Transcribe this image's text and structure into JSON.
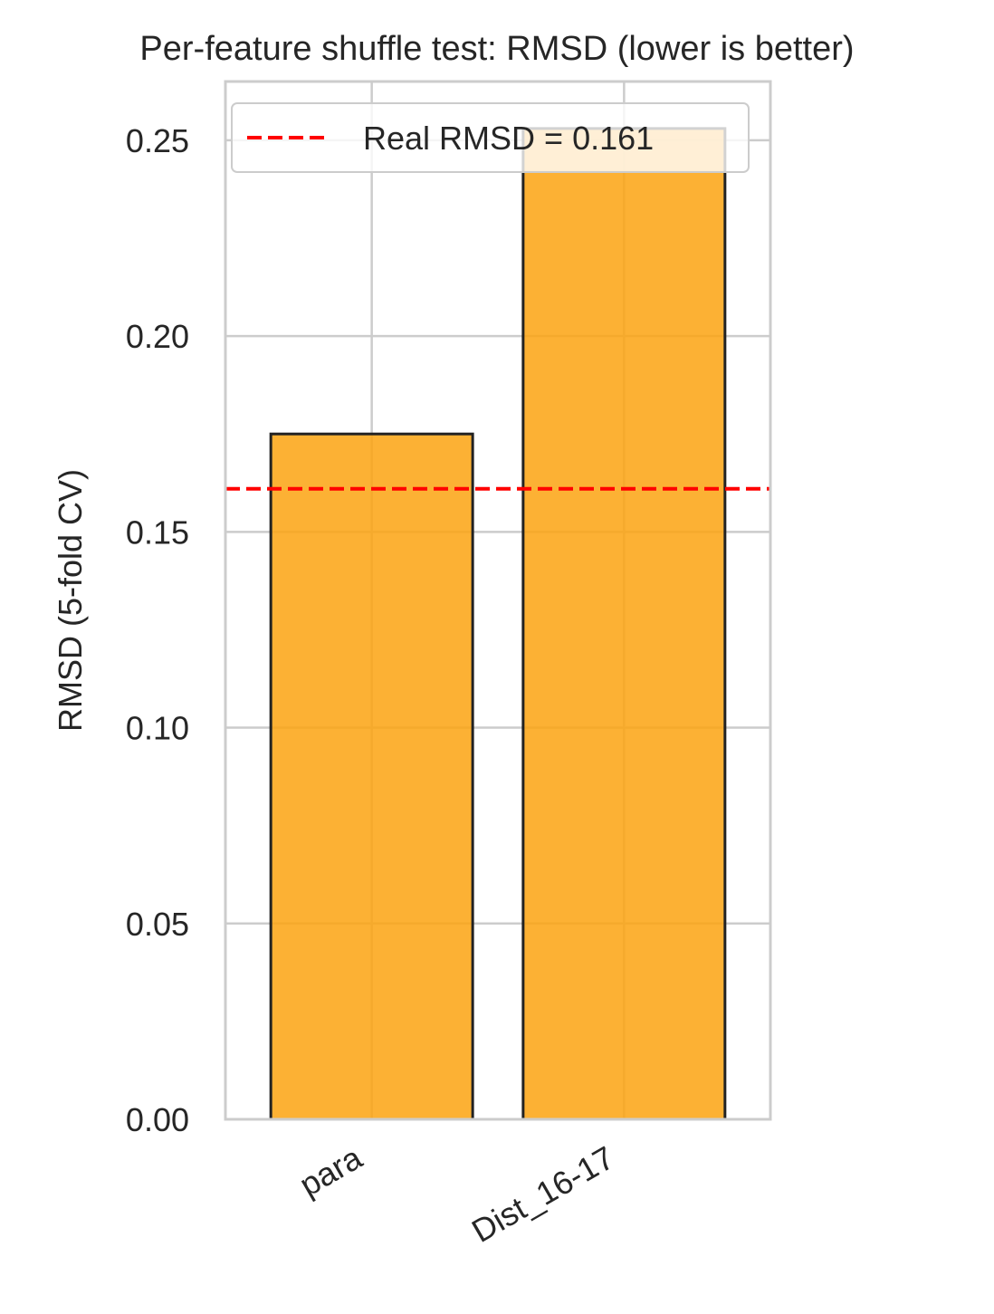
{
  "chart_data": {
    "type": "bar",
    "title": "Per-feature shuffle test: RMSD (lower is better)",
    "xlabel": "",
    "ylabel": "RMSD (5-fold CV)",
    "categories": [
      "para",
      "Dist_16-17"
    ],
    "values": [
      0.175,
      0.253
    ],
    "ylim": [
      0,
      0.265
    ],
    "yticks": [
      0.0,
      0.05,
      0.1,
      0.15,
      0.2,
      0.25
    ],
    "ytick_labels": [
      "0.00",
      "0.05",
      "0.10",
      "0.15",
      "0.20",
      "0.25"
    ],
    "reference_line": {
      "value": 0.161,
      "label": "Real RMSD = 0.161",
      "style": "dashed",
      "color": "#ff0000"
    },
    "bar_color": "#fca311",
    "bar_edge_color": "#222222",
    "grid": true,
    "grid_color": "#cccccc",
    "legend_position": "top-left"
  }
}
